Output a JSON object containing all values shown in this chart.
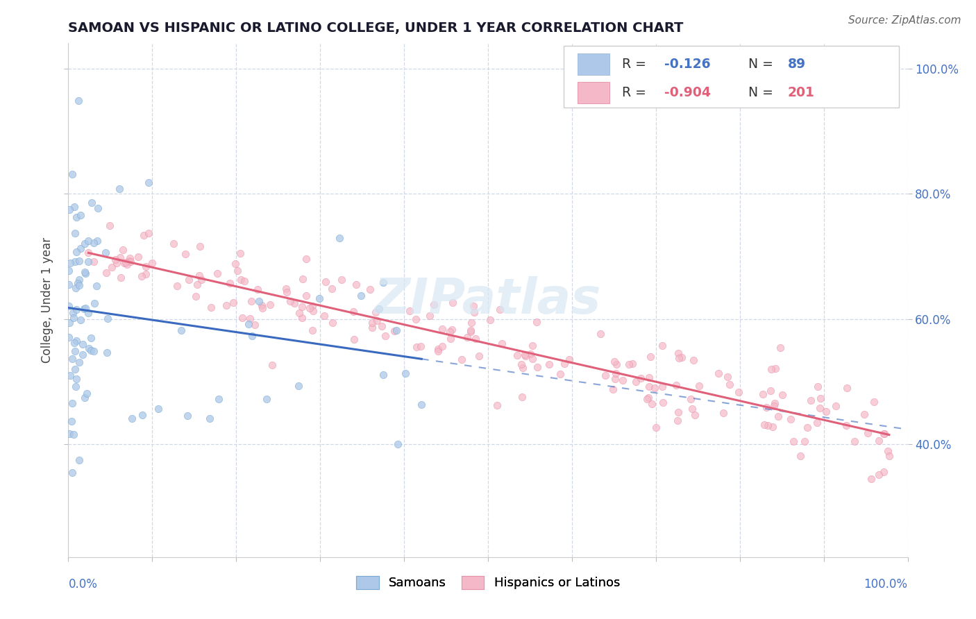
{
  "title": "SAMOAN VS HISPANIC OR LATINO COLLEGE, UNDER 1 YEAR CORRELATION CHART",
  "source_text": "Source: ZipAtlas.com",
  "ylabel": "College, Under 1 year",
  "samoans_label": "Samoans",
  "hispanics_label": "Hispanics or Latinos",
  "samoan_color": "#adc8e8",
  "samoan_edge_color": "#7aaad4",
  "samoan_line_color": "#3a6abf",
  "hispanic_color": "#f5b8c8",
  "hispanic_edge_color": "#e890a8",
  "hispanic_line_color": "#e0607a",
  "dash_line_color": "#aac4e0",
  "watermark_color": "#d8e8f4",
  "background_color": "#ffffff",
  "grid_color": "#d0d8e8",
  "xlim": [
    0.0,
    1.0
  ],
  "ylim": [
    0.22,
    1.04
  ],
  "yticks": [
    0.4,
    0.6,
    0.8,
    1.0
  ],
  "ytick_labels": [
    "40.0%",
    "60.0%",
    "80.0%",
    "100.0%"
  ],
  "tick_color": "#4472c4",
  "R_samoan": -0.126,
  "N_samoan": 89,
  "R_hispanic": -0.904,
  "N_hispanic": 201,
  "legend_box_color": "#f5b8c8",
  "legend_blue_box": "#adc8e8",
  "legend_r_color": "#4472c4",
  "legend_r2_color": "#e0607a"
}
